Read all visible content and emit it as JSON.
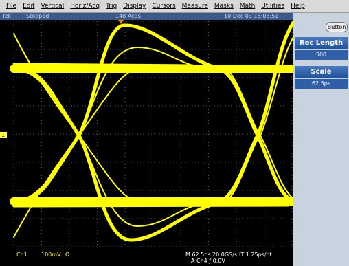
{
  "menu": [
    "File",
    "Edit",
    "Vertical",
    "Horiz/Acq",
    "Trig",
    "Display",
    "Cursors",
    "Measure",
    "Masks",
    "Math",
    "Utilities",
    "Help"
  ],
  "status": {
    "brand": "Tek",
    "state": "Stopped",
    "acquisitions": "148 Acqs",
    "timestamp": "10 Dec 03 15:03:51"
  },
  "side_panel": {
    "button": "Button",
    "rec_length_label": "Rec Length",
    "rec_length_value": "500",
    "scale_label": "Scale",
    "scale_value": "62.5ps"
  },
  "channel_marker": "1",
  "readout": {
    "channel": "Ch1",
    "volts_per_div": "100mV",
    "impedance": "Ω",
    "horizontal": "M 62.5ps 20.0GS/s",
    "interval": "IT 1.25ps/pt",
    "trigger": "A Ch4 ƒ 0.0V"
  }
}
